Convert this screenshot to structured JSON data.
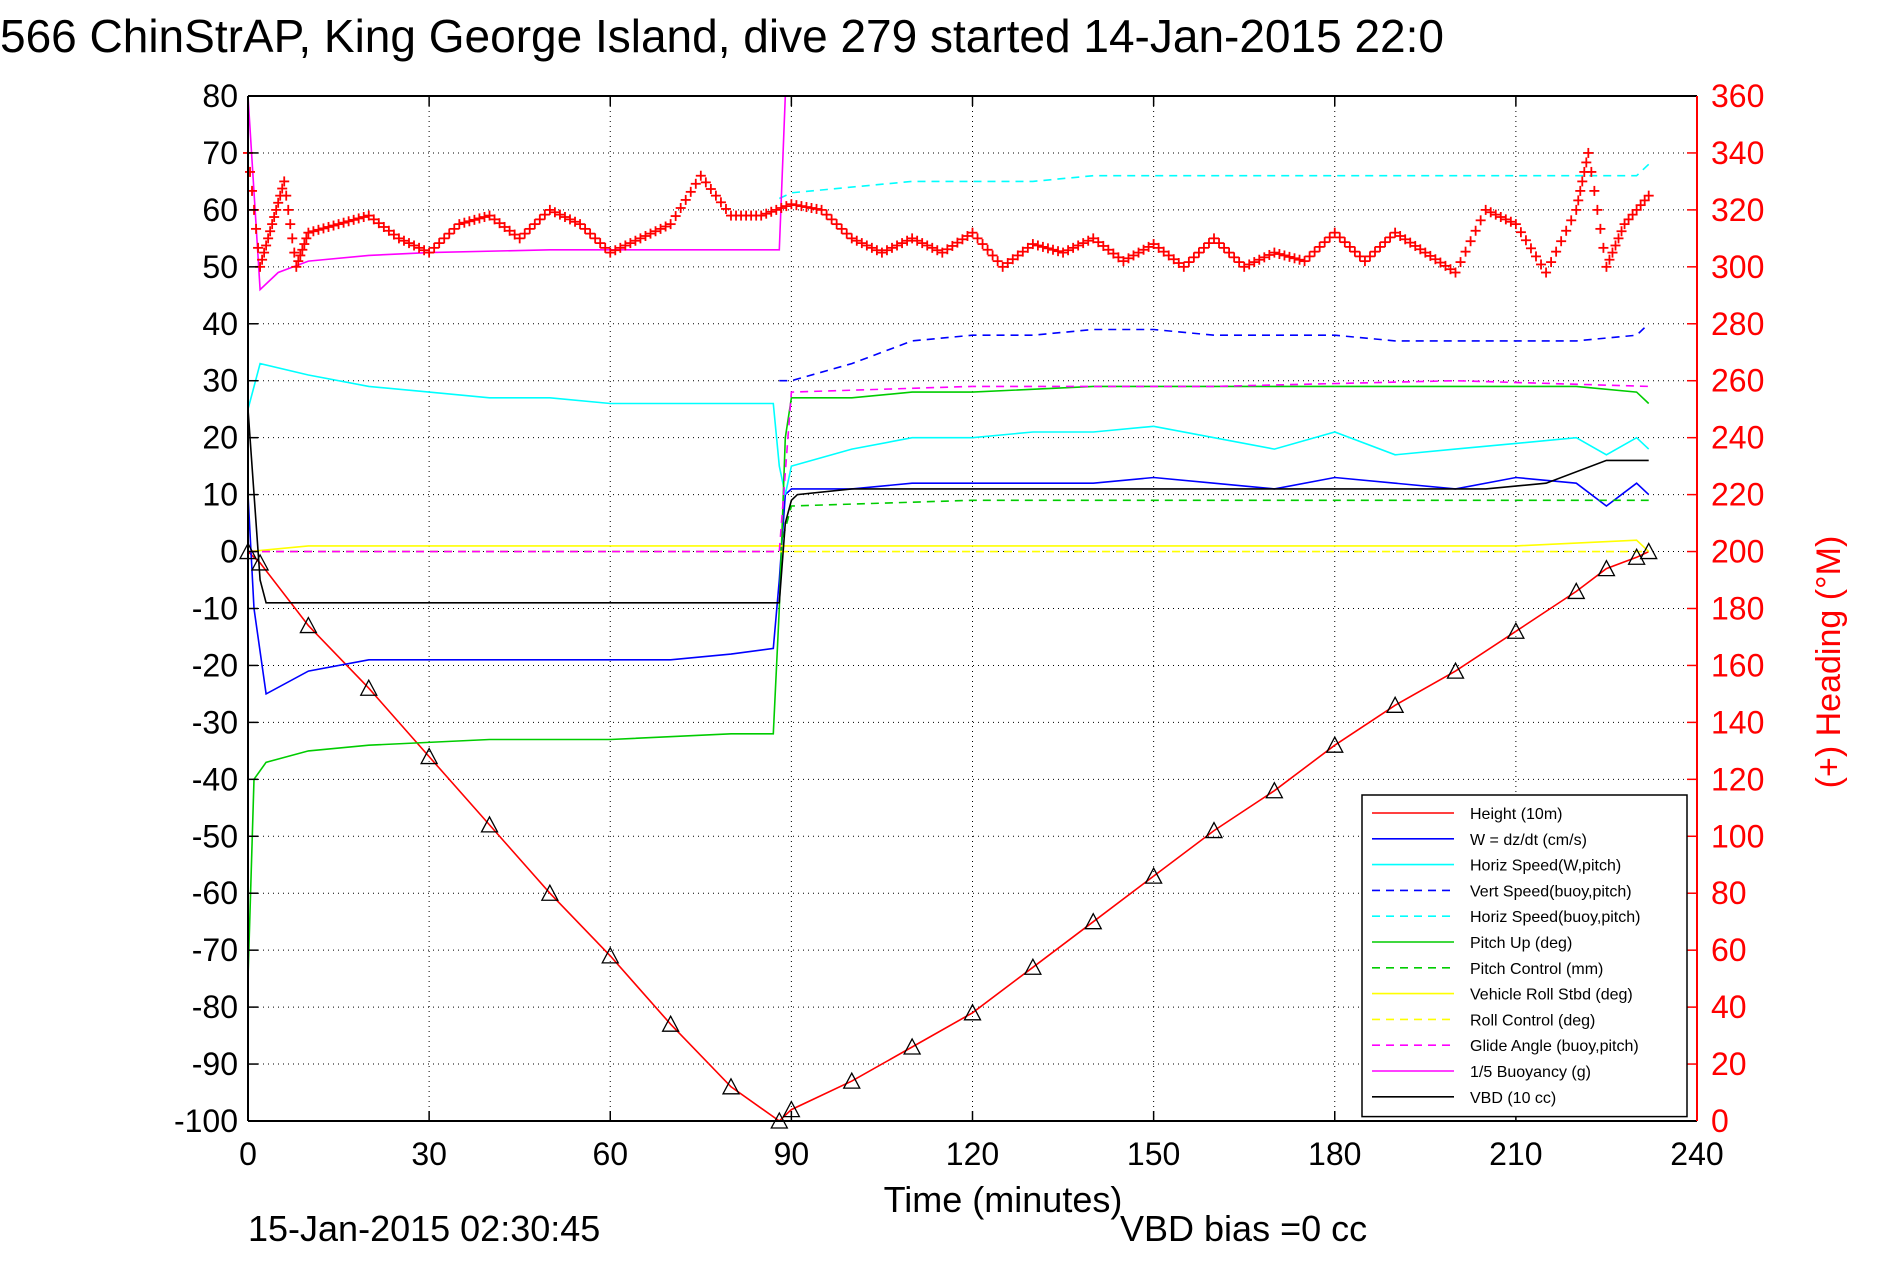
{
  "chart_data": {
    "type": "line",
    "title": "566 ChinStrAP, King George Island, dive 279 started 14-Jan-2015 22:0",
    "xlabel": "Time (minutes)",
    "ylabel_right": "(+) Heading (°M)",
    "footer_left": "15-Jan-2015 02:30:45",
    "footer_right": "VBD bias =0 cc",
    "xlim": [
      0,
      240
    ],
    "ylim": [
      -100,
      80
    ],
    "y2lim": [
      0,
      360
    ],
    "x_ticks": [
      "0",
      "30",
      "60",
      "90",
      "120",
      "150",
      "180",
      "210",
      "240"
    ],
    "y_ticks": [
      "80",
      "70",
      "60",
      "50",
      "40",
      "30",
      "20",
      "10",
      "0",
      "-10",
      "-20",
      "-30",
      "-40",
      "-50",
      "-60",
      "-70",
      "-80",
      "-90",
      "-100"
    ],
    "y2_ticks": [
      "360",
      "340",
      "320",
      "300",
      "280",
      "260",
      "240",
      "220",
      "200",
      "180",
      "160",
      "140",
      "120",
      "100",
      "80",
      "60",
      "40",
      "20",
      "0"
    ],
    "grid": true,
    "legend_position": "bottom-right",
    "colors": {
      "axis": "#000000",
      "heading": "#ff0000",
      "grid": "#000000"
    },
    "series": [
      {
        "name": "Height (10m)",
        "color": "#ff0000",
        "dash": "solid",
        "x": [
          0,
          2,
          10,
          20,
          30,
          40,
          50,
          60,
          70,
          80,
          88,
          90,
          100,
          110,
          120,
          130,
          140,
          150,
          160,
          170,
          180,
          190,
          200,
          210,
          220,
          225,
          230,
          232
        ],
        "y": [
          0,
          -2,
          -13,
          -24,
          -36,
          -48,
          -60,
          -71,
          -83,
          -94,
          -100,
          -98,
          -93,
          -87,
          -81,
          -73,
          -65,
          -57,
          -49,
          -42,
          -34,
          -27,
          -21,
          -14,
          -7,
          -3,
          -1,
          0
        ]
      },
      {
        "name": "W = dz/dt (cm/s)",
        "color": "#0000ff",
        "dash": "solid",
        "x": [
          0,
          1,
          3,
          10,
          20,
          30,
          50,
          70,
          80,
          87,
          88,
          89,
          90,
          100,
          110,
          120,
          140,
          150,
          160,
          170,
          180,
          190,
          200,
          210,
          220,
          225,
          230,
          232
        ],
        "y": [
          10,
          -10,
          -25,
          -21,
          -19,
          -19,
          -19,
          -19,
          -18,
          -17,
          -5,
          10,
          11,
          11,
          12,
          12,
          12,
          13,
          12,
          11,
          13,
          12,
          11,
          13,
          12,
          8,
          12,
          10
        ]
      },
      {
        "name": "Horiz Speed(W,pitch)",
        "color": "#00ffff",
        "dash": "solid",
        "x": [
          0,
          2,
          10,
          20,
          30,
          40,
          50,
          60,
          70,
          80,
          87,
          88,
          89,
          90,
          100,
          110,
          120,
          130,
          140,
          150,
          160,
          170,
          180,
          190,
          200,
          210,
          220,
          225,
          230,
          232
        ],
        "y": [
          25,
          33,
          31,
          29,
          28,
          27,
          27,
          26,
          26,
          26,
          26,
          15,
          10,
          15,
          18,
          20,
          20,
          21,
          21,
          22,
          20,
          18,
          21,
          17,
          18,
          19,
          20,
          17,
          20,
          18
        ]
      },
      {
        "name": "Vert Speed(buoy,pitch)",
        "color": "#0000ff",
        "dash": "dashed",
        "x": [
          88,
          90,
          100,
          110,
          120,
          130,
          140,
          150,
          160,
          170,
          180,
          190,
          200,
          210,
          220,
          230,
          232
        ],
        "y": [
          30,
          30,
          33,
          37,
          38,
          38,
          39,
          39,
          38,
          38,
          38,
          37,
          37,
          37,
          37,
          38,
          40
        ]
      },
      {
        "name": "Horiz Speed(buoy,pitch)",
        "color": "#00ffff",
        "dash": "dashed",
        "x": [
          88,
          90,
          100,
          110,
          120,
          130,
          140,
          150,
          160,
          170,
          180,
          190,
          200,
          210,
          220,
          230,
          232
        ],
        "y": [
          62,
          63,
          64,
          65,
          65,
          65,
          66,
          66,
          66,
          66,
          66,
          66,
          66,
          66,
          66,
          66,
          68
        ]
      },
      {
        "name": "Pitch Up (deg)",
        "color": "#00cc00",
        "dash": "solid",
        "x": [
          0,
          1,
          3,
          10,
          20,
          40,
          60,
          80,
          87,
          88,
          89,
          90,
          100,
          110,
          120,
          140,
          160,
          180,
          200,
          220,
          230,
          232
        ],
        "y": [
          -75,
          -40,
          -37,
          -35,
          -34,
          -33,
          -33,
          -32,
          -32,
          -10,
          20,
          27,
          27,
          28,
          28,
          29,
          29,
          29,
          29,
          29,
          28,
          26
        ]
      },
      {
        "name": "Pitch Control (mm)",
        "color": "#00cc00",
        "dash": "dashed",
        "x": [
          0,
          88,
          89,
          90,
          120,
          160,
          200,
          232
        ],
        "y": [
          0,
          0,
          4,
          8,
          9,
          9,
          9,
          9
        ]
      },
      {
        "name": "Vehicle Roll Stbd (deg)",
        "color": "#ffff00",
        "dash": "solid",
        "x": [
          0,
          10,
          30,
          50,
          70,
          87,
          90,
          110,
          130,
          150,
          170,
          190,
          210,
          230,
          232
        ],
        "y": [
          0,
          1,
          1,
          1,
          1,
          1,
          1,
          1,
          1,
          1,
          1,
          1,
          1,
          2,
          0
        ]
      },
      {
        "name": "Roll Control (deg)",
        "color": "#ffff00",
        "dash": "dashed",
        "x": [
          0,
          88,
          90,
          232
        ],
        "y": [
          0,
          0,
          0,
          0
        ]
      },
      {
        "name": "Glide Angle (buoy,pitch)",
        "color": "#ff00ff",
        "dash": "dashed",
        "x": [
          0,
          88,
          90,
          120,
          160,
          200,
          232
        ],
        "y": [
          0,
          0,
          28,
          29,
          29,
          30,
          29
        ]
      },
      {
        "name": "1/5 Buoyancy (g)",
        "color": "#ff00ff",
        "dash": "solid",
        "x": [
          0,
          2,
          5,
          10,
          20,
          30,
          50,
          70,
          88,
          89
        ],
        "y": [
          80,
          46,
          49,
          51,
          52,
          52.5,
          53,
          53,
          53,
          80
        ]
      },
      {
        "name": "VBD (10 cc)",
        "color": "#000000",
        "dash": "solid",
        "x": [
          0,
          2,
          3,
          88,
          89,
          90,
          91,
          100,
          120,
          150,
          180,
          190,
          205,
          215,
          225,
          232
        ],
        "y": [
          25,
          -5,
          -9,
          -9,
          5,
          9,
          10,
          11,
          11,
          11,
          11,
          11,
          11,
          12,
          16,
          16
        ]
      }
    ],
    "heading": {
      "name": "Heading",
      "marker": "+",
      "color": "#ff0000",
      "x": [
        0,
        2,
        4,
        6,
        8,
        10,
        15,
        20,
        25,
        30,
        35,
        40,
        45,
        50,
        55,
        60,
        65,
        70,
        75,
        80,
        85,
        90,
        95,
        100,
        105,
        110,
        115,
        120,
        125,
        130,
        135,
        140,
        145,
        150,
        155,
        160,
        165,
        170,
        175,
        180,
        185,
        190,
        195,
        200,
        205,
        210,
        215,
        220,
        222,
        225,
        228,
        232
      ],
      "y": [
        340,
        300,
        315,
        330,
        300,
        312,
        315,
        318,
        310,
        305,
        315,
        318,
        310,
        320,
        315,
        305,
        310,
        315,
        332,
        318,
        318,
        322,
        320,
        310,
        305,
        310,
        305,
        312,
        300,
        308,
        305,
        310,
        302,
        308,
        300,
        310,
        300,
        305,
        302,
        312,
        302,
        312,
        305,
        298,
        320,
        315,
        298,
        320,
        340,
        300,
        315,
        325
      ]
    }
  }
}
